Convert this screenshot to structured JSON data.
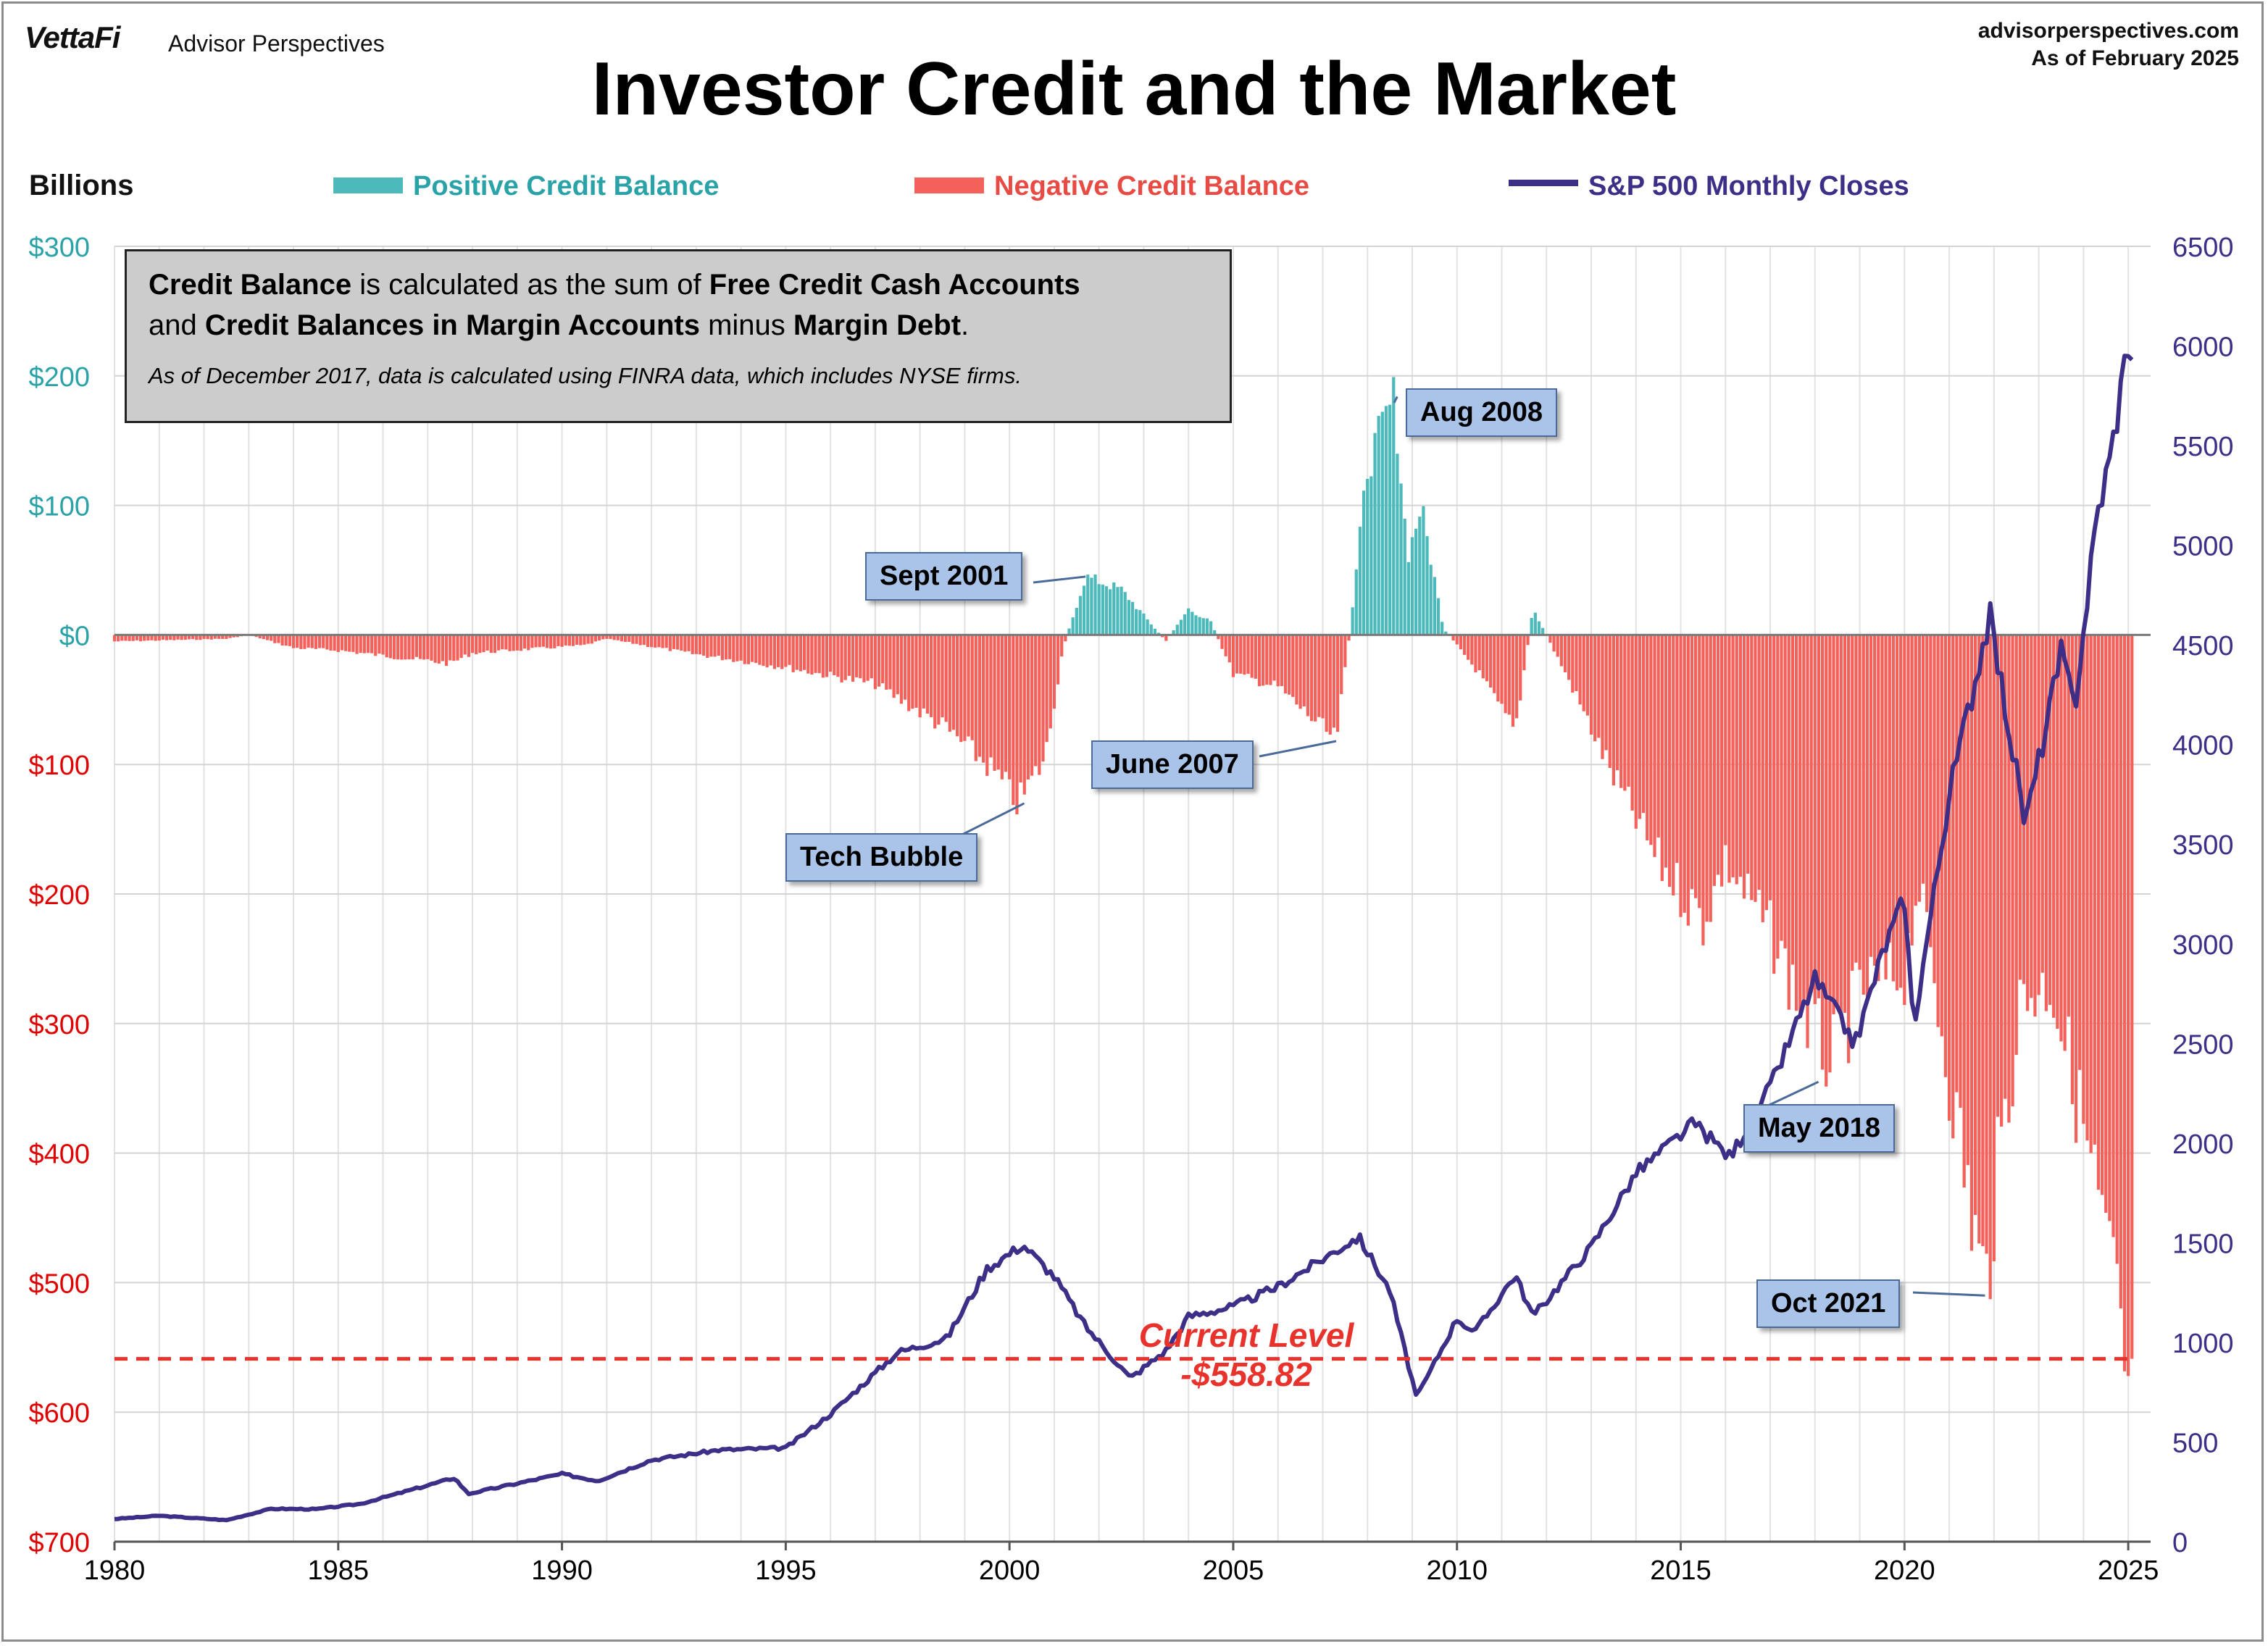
{
  "header": {
    "brand": "VettaFi",
    "brand_sub": "Advisor Perspectives",
    "site": "advisorperspectives.com",
    "as_of": "As of February 2025"
  },
  "chart_data": {
    "type": "bar",
    "title": "Investor Credit and the Market",
    "units_label": "Billions",
    "legend": {
      "positive": "Positive Credit Balance",
      "negative": "Negative Credit Balance",
      "sp500": "S&P 500 Monthly Closes"
    },
    "colors": {
      "positive": "#4cb9bb",
      "negative": "#f4605a",
      "sp500": "#3d2f87",
      "current_line": "#e8322c",
      "left_pos_axis": "#2aa3a8",
      "left_neg_axis": "#e00000",
      "right_axis": "#3d2f87"
    },
    "x_ticks": [
      "1980",
      "1985",
      "1990",
      "1995",
      "2000",
      "2005",
      "2010",
      "2015",
      "2020",
      "2025"
    ],
    "left_axis": {
      "ylim": [
        -700,
        300
      ],
      "ticks": [
        {
          "value": 300,
          "label": "$300"
        },
        {
          "value": 200,
          "label": "$200"
        },
        {
          "value": 100,
          "label": "$100"
        },
        {
          "value": 0,
          "label": "$0"
        },
        {
          "value": -100,
          "label": "$100"
        },
        {
          "value": -200,
          "label": "$200"
        },
        {
          "value": -300,
          "label": "$300"
        },
        {
          "value": -400,
          "label": "$400"
        },
        {
          "value": -500,
          "label": "$500"
        },
        {
          "value": -600,
          "label": "$600"
        },
        {
          "value": -700,
          "label": "$700"
        }
      ]
    },
    "right_axis": {
      "ylim": [
        0,
        6500
      ],
      "ticks": [
        "0",
        "500",
        "1000",
        "1500",
        "2000",
        "2500",
        "3000",
        "3500",
        "4000",
        "4500",
        "5000",
        "5500",
        "6000",
        "6500"
      ]
    },
    "credit_balance": {
      "note": "Monthly credit balance ($ billions), interpolated between key points",
      "points": [
        [
          1980.0,
          -5
        ],
        [
          1982.5,
          -3
        ],
        [
          1983.0,
          0
        ],
        [
          1984.0,
          -10
        ],
        [
          1985.0,
          -12
        ],
        [
          1987.5,
          -22
        ],
        [
          1988.0,
          -14
        ],
        [
          1990.5,
          -8
        ],
        [
          1991.0,
          -3
        ],
        [
          1993.0,
          -15
        ],
        [
          1995.0,
          -25
        ],
        [
          1997.0,
          -38
        ],
        [
          1998.5,
          -70
        ],
        [
          1999.5,
          -100
        ],
        [
          2000.2,
          -130
        ],
        [
          2000.8,
          -95
        ],
        [
          2001.2,
          -10
        ],
        [
          2001.7,
          45
        ],
        [
          2002.5,
          35
        ],
        [
          2003.0,
          15
        ],
        [
          2003.5,
          -5
        ],
        [
          2004.0,
          20
        ],
        [
          2004.5,
          10
        ],
        [
          2005.0,
          -30
        ],
        [
          2006.0,
          -40
        ],
        [
          2007.3,
          -82
        ],
        [
          2007.6,
          0
        ],
        [
          2008.0,
          130
        ],
        [
          2008.6,
          184
        ],
        [
          2008.9,
          60
        ],
        [
          2009.2,
          100
        ],
        [
          2009.7,
          5
        ],
        [
          2010.5,
          -30
        ],
        [
          2011.3,
          -75
        ],
        [
          2011.7,
          20
        ],
        [
          2012.5,
          -35
        ],
        [
          2013.5,
          -110
        ],
        [
          2014.5,
          -175
        ],
        [
          2015.5,
          -220
        ],
        [
          2016.0,
          -175
        ],
        [
          2017.0,
          -230
        ],
        [
          2018.0,
          -310
        ],
        [
          2018.4,
          -330
        ],
        [
          2019.0,
          -275
        ],
        [
          2020.0,
          -260
        ],
        [
          2020.3,
          -190
        ],
        [
          2021.0,
          -340
        ],
        [
          2021.8,
          -510
        ],
        [
          2022.0,
          -440
        ],
        [
          2022.6,
          -280
        ],
        [
          2023.3,
          -270
        ],
        [
          2024.0,
          -380
        ],
        [
          2024.7,
          -510
        ],
        [
          2025.0,
          -593
        ],
        [
          2025.1,
          -558.82
        ]
      ]
    },
    "sp500": {
      "note": "S&P 500 monthly closes, key points",
      "points": [
        [
          1980.0,
          114
        ],
        [
          1981.0,
          130
        ],
        [
          1982.5,
          108
        ],
        [
          1983.5,
          165
        ],
        [
          1984.5,
          163
        ],
        [
          1985.5,
          190
        ],
        [
          1987.6,
          320
        ],
        [
          1987.9,
          240
        ],
        [
          1990.0,
          340
        ],
        [
          1990.8,
          305
        ],
        [
          1992.0,
          410
        ],
        [
          1993.5,
          460
        ],
        [
          1995.0,
          470
        ],
        [
          1996.0,
          640
        ],
        [
          1997.5,
          950
        ],
        [
          1998.6,
          1020
        ],
        [
          1999.5,
          1370
        ],
        [
          2000.3,
          1490
        ],
        [
          2001.0,
          1330
        ],
        [
          2001.7,
          1080
        ],
        [
          2002.7,
          820
        ],
        [
          2003.5,
          960
        ],
        [
          2004.0,
          1130
        ],
        [
          2005.0,
          1180
        ],
        [
          2006.0,
          1280
        ],
        [
          2007.8,
          1530
        ],
        [
          2008.5,
          1260
        ],
        [
          2009.1,
          720
        ],
        [
          2010.0,
          1120
        ],
        [
          2010.4,
          1050
        ],
        [
          2011.3,
          1340
        ],
        [
          2011.7,
          1130
        ],
        [
          2013.0,
          1480
        ],
        [
          2014.0,
          1850
        ],
        [
          2015.3,
          2100
        ],
        [
          2016.1,
          1930
        ],
        [
          2017.0,
          2280
        ],
        [
          2018.0,
          2820
        ],
        [
          2018.9,
          2500
        ],
        [
          2019.5,
          2950
        ],
        [
          2020.0,
          3230
        ],
        [
          2020.2,
          2580
        ],
        [
          2021.0,
          3750
        ],
        [
          2021.9,
          4650
        ],
        [
          2022.7,
          3600
        ],
        [
          2023.5,
          4450
        ],
        [
          2023.8,
          4190
        ],
        [
          2024.3,
          5150
        ],
        [
          2024.6,
          5440
        ],
        [
          2024.9,
          5880
        ],
        [
          2025.0,
          6040
        ],
        [
          2025.1,
          5955
        ]
      ]
    },
    "current_level": {
      "value": -558.82,
      "label": "Current Level",
      "value_label": "-$558.82"
    },
    "info_box": {
      "line1_a": "Credit Balance",
      "line1_b": " is calculated as the sum of ",
      "line1_c": "Free Credit Cash Accounts",
      "line1_d": "and ",
      "line1_e": "Credit Balances in Margin Accounts",
      "line1_f": " minus ",
      "line1_g": "Margin Debt",
      "line1_h": ".",
      "line2": "As of December 2017, data is calculated using FINRA data, which includes NYSE firms."
    },
    "annotations": [
      {
        "key": "aug2008",
        "label": "Aug 2008"
      },
      {
        "key": "sept2001",
        "label": "Sept 2001"
      },
      {
        "key": "june2007",
        "label": "June 2007"
      },
      {
        "key": "techbubble",
        "label": "Tech Bubble"
      },
      {
        "key": "may2018",
        "label": "May 2018"
      },
      {
        "key": "oct2021",
        "label": "Oct 2021"
      }
    ]
  }
}
